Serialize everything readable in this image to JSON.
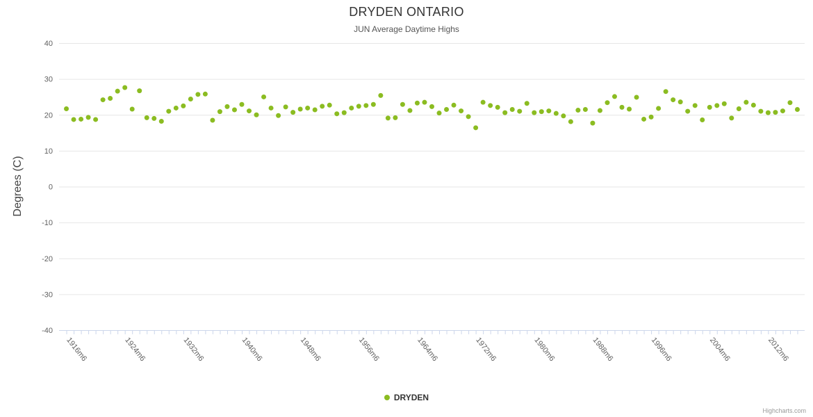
{
  "credits": "Highcharts.com",
  "colors": {
    "series_green": "#8bbc21",
    "grid_line": "#e6e6e6",
    "axis_line": "#ccd6eb",
    "tick_label": "#606060",
    "title_text": "#333333",
    "subtitle_text": "#555555"
  },
  "chart_data": {
    "type": "scatter",
    "title": "DRYDEN ONTARIO",
    "subtitle": "JUN Average Daytime Highs",
    "xlabel": "",
    "ylabel": "Degrees (C)",
    "ylim": [
      -40,
      40
    ],
    "yticks": [
      40,
      30,
      20,
      10,
      0,
      -10,
      -20,
      -30,
      -40
    ],
    "grid": true,
    "legend_position": "bottom-center",
    "xtick_years": [
      1916,
      1924,
      1932,
      1940,
      1948,
      1956,
      1964,
      1972,
      1980,
      1988,
      1996,
      2004,
      2012
    ],
    "xtick_labels": [
      "1916m6",
      "1924m6",
      "1932m6",
      "1940m6",
      "1948m6",
      "1956m6",
      "1964m6",
      "1972m6",
      "1980m6",
      "1988m6",
      "1996m6",
      "2004m6",
      "2012m6"
    ],
    "series": [
      {
        "name": "DRYDEN",
        "color": "#8bbc21",
        "marker_radius": 3.5,
        "x": [
          1916,
          1917,
          1918,
          1919,
          1920,
          1921,
          1922,
          1923,
          1924,
          1925,
          1926,
          1927,
          1928,
          1929,
          1930,
          1931,
          1932,
          1933,
          1934,
          1935,
          1936,
          1937,
          1938,
          1939,
          1940,
          1941,
          1942,
          1943,
          1944,
          1945,
          1946,
          1947,
          1948,
          1949,
          1950,
          1951,
          1952,
          1953,
          1954,
          1955,
          1956,
          1957,
          1958,
          1959,
          1960,
          1961,
          1962,
          1963,
          1964,
          1965,
          1966,
          1967,
          1968,
          1969,
          1970,
          1971,
          1972,
          1973,
          1974,
          1975,
          1976,
          1977,
          1978,
          1979,
          1980,
          1981,
          1982,
          1983,
          1984,
          1985,
          1986,
          1987,
          1988,
          1989,
          1990,
          1991,
          1992,
          1993,
          1994,
          1995,
          1996,
          1997,
          1998,
          1999,
          2000,
          2001,
          2002,
          2003,
          2004,
          2005,
          2006,
          2007,
          2008,
          2009,
          2010,
          2011,
          2012,
          2013,
          2014,
          2015,
          2016
        ],
        "y": [
          21.7,
          18.7,
          18.8,
          19.3,
          18.7,
          24.2,
          24.6,
          26.6,
          27.6,
          21.6,
          26.7,
          19.2,
          19.0,
          18.2,
          21.0,
          21.9,
          22.5,
          24.4,
          25.7,
          25.8,
          18.5,
          20.9,
          22.3,
          21.4,
          22.9,
          21.1,
          20.0,
          25.0,
          21.9,
          19.8,
          22.2,
          20.7,
          21.6,
          21.9,
          21.4,
          22.4,
          22.7,
          20.3,
          20.6,
          21.9,
          22.4,
          22.6,
          22.9,
          25.4,
          19.1,
          19.2,
          22.9,
          21.2,
          23.3,
          23.5,
          22.3,
          20.5,
          21.5,
          22.7,
          21.1,
          19.5,
          16.4,
          23.5,
          22.6,
          22.1,
          20.6,
          21.5,
          21.0,
          23.2,
          20.6,
          20.9,
          21.1,
          20.4,
          19.7,
          18.1,
          21.3,
          21.5,
          17.7,
          21.2,
          23.4,
          25.1,
          22.1,
          21.6,
          24.9,
          18.8,
          19.4,
          21.8,
          26.5,
          24.2,
          23.6,
          21.0,
          22.6,
          18.6,
          22.1,
          22.6,
          23.1,
          19.1,
          21.7,
          23.5,
          22.7,
          21.0,
          20.6,
          20.7,
          21.1,
          23.4,
          21.5
        ]
      }
    ]
  }
}
